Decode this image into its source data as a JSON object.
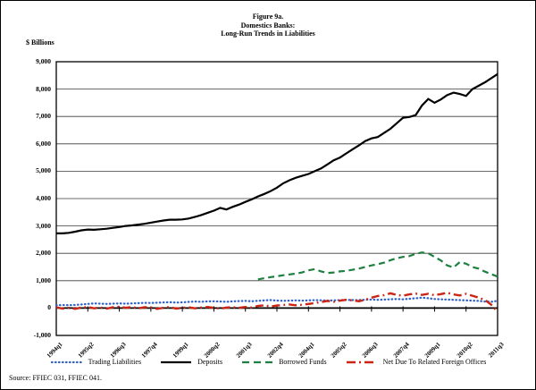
{
  "figure": {
    "title_line1": "Figure 9a.",
    "title_line2": "Domestics Banks:",
    "title_line3": "Long-Run Trends in Liabilities",
    "y_axis_title": "$ Billions",
    "source": "Source: FFIEC 031, FFIEC 041."
  },
  "chart_data": {
    "type": "line",
    "title": "Figure 9a. Domestics Banks: Long-Run Trends in Liabilities",
    "ylabel": "$ Billions",
    "ylim": [
      -1000,
      9000
    ],
    "y_tick_interval": 1000,
    "y_tick_labels": [
      "9,000",
      "8,000",
      "7,000",
      "6,000",
      "5,000",
      "4,000",
      "3,000",
      "2,000",
      "1,000",
      "0",
      "-1,000"
    ],
    "x_start": "1994q1",
    "x_end": "2011q3",
    "n_points": 71,
    "x_tick_every": 5,
    "x_tick_labels": [
      "1994q1",
      "1995q2",
      "1996q3",
      "1997q4",
      "1999q1",
      "2000q2",
      "2001q3",
      "2002q4",
      "2004q1",
      "2005q2",
      "2006q3",
      "2007q4",
      "2009q1",
      "2010q2",
      "2011q3"
    ],
    "grid": true,
    "legend_position": "bottom",
    "axis_color": "#000000",
    "grid_color": "#3a3a3a",
    "series": [
      {
        "name": "Trading Liabilities",
        "color": "#2f5fc0",
        "style": "dotted",
        "values": [
          100,
          110,
          105,
          115,
          130,
          150,
          170,
          160,
          150,
          160,
          170,
          160,
          170,
          180,
          190,
          185,
          195,
          205,
          215,
          200,
          210,
          225,
          240,
          230,
          245,
          250,
          240,
          230,
          245,
          255,
          260,
          250,
          265,
          280,
          290,
          275,
          265,
          270,
          280,
          270,
          280,
          290,
          285,
          275,
          280,
          290,
          300,
          290,
          295,
          305,
          310,
          300,
          310,
          320,
          330,
          320,
          340,
          360,
          380,
          360,
          330,
          320,
          310,
          300,
          290,
          280,
          270,
          260,
          240,
          230,
          265
        ]
      },
      {
        "name": "Deposits",
        "color": "#000000",
        "style": "solid",
        "values": [
          2730,
          2730,
          2750,
          2790,
          2840,
          2870,
          2860,
          2880,
          2900,
          2930,
          2960,
          3000,
          3020,
          3050,
          3080,
          3120,
          3160,
          3200,
          3230,
          3230,
          3240,
          3270,
          3330,
          3400,
          3480,
          3560,
          3660,
          3600,
          3700,
          3780,
          3880,
          3970,
          4080,
          4170,
          4270,
          4400,
          4560,
          4670,
          4760,
          4830,
          4900,
          5000,
          5100,
          5250,
          5400,
          5500,
          5650,
          5800,
          5940,
          6100,
          6200,
          6250,
          6400,
          6550,
          6750,
          6950,
          6980,
          7050,
          7400,
          7640,
          7500,
          7620,
          7780,
          7870,
          7820,
          7750,
          8000,
          8120,
          8250,
          8400,
          8550
        ]
      },
      {
        "name": "Borrowed Funds",
        "color": "#1e8040",
        "style": "dashed",
        "values": [
          null,
          null,
          null,
          null,
          null,
          null,
          null,
          null,
          null,
          null,
          null,
          null,
          null,
          null,
          null,
          null,
          null,
          null,
          null,
          null,
          null,
          null,
          null,
          null,
          null,
          null,
          null,
          null,
          null,
          null,
          null,
          null,
          1050,
          1090,
          1130,
          1160,
          1200,
          1230,
          1260,
          1300,
          1380,
          1420,
          1340,
          1280,
          1300,
          1340,
          1360,
          1400,
          1440,
          1500,
          1560,
          1600,
          1660,
          1750,
          1820,
          1870,
          1900,
          1980,
          2030,
          2000,
          1870,
          1740,
          1560,
          1480,
          1680,
          1620,
          1500,
          1440,
          1330,
          1240,
          1150
        ]
      },
      {
        "name": "Net Due To Related Foreign Offices",
        "color": "#cc2413",
        "style": "dashdot",
        "values": [
          30,
          -20,
          10,
          -30,
          20,
          40,
          -10,
          20,
          -20,
          30,
          50,
          10,
          40,
          -10,
          30,
          20,
          -30,
          10,
          40,
          -20,
          10,
          30,
          -10,
          20,
          40,
          10,
          -20,
          20,
          30,
          10,
          40,
          20,
          80,
          100,
          60,
          90,
          110,
          130,
          100,
          120,
          150,
          180,
          220,
          260,
          230,
          270,
          300,
          280,
          250,
          300,
          380,
          440,
          470,
          540,
          480,
          450,
          500,
          530,
          480,
          520,
          470,
          510,
          560,
          500,
          460,
          520,
          450,
          380,
          300,
          120,
          -140
        ]
      }
    ]
  }
}
